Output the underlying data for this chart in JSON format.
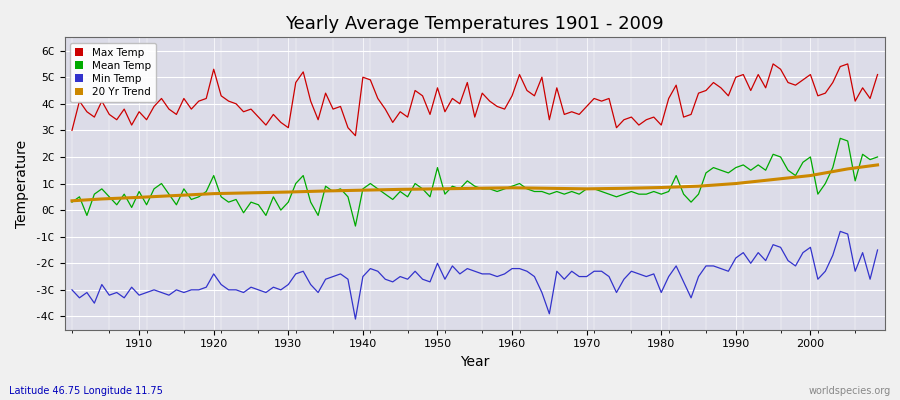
{
  "title": "Yearly Average Temperatures 1901 - 2009",
  "xlabel": "Year",
  "ylabel": "Temperature",
  "footnote_left": "Latitude 46.75 Longitude 11.75",
  "footnote_right": "worldspecies.org",
  "ylim": [
    -4.5,
    6.5
  ],
  "yticks": [
    -4,
    -3,
    -2,
    -1,
    0,
    1,
    2,
    3,
    4,
    5,
    6
  ],
  "ytick_labels": [
    "-4C",
    "-3C",
    "-2C",
    "-1C",
    "0C",
    "1C",
    "2C",
    "3C",
    "4C",
    "5C",
    "6C"
  ],
  "start_year": 1901,
  "end_year": 2009,
  "legend_labels": [
    "Max Temp",
    "Mean Temp",
    "Min Temp",
    "20 Yr Trend"
  ],
  "legend_colors": [
    "#cc0000",
    "#00aa00",
    "#3333cc",
    "#cc8800"
  ],
  "bg_color": "#dcdce8",
  "grid_color": "#ffffff",
  "max_temp": [
    3.0,
    4.1,
    3.7,
    3.5,
    4.1,
    3.6,
    3.4,
    3.8,
    3.2,
    3.7,
    3.4,
    3.9,
    4.2,
    3.8,
    3.6,
    4.2,
    3.8,
    4.1,
    4.2,
    5.3,
    4.3,
    4.1,
    4.0,
    3.7,
    3.8,
    3.5,
    3.2,
    3.6,
    3.3,
    3.1,
    4.8,
    5.2,
    4.1,
    3.4,
    4.4,
    3.8,
    3.9,
    3.1,
    2.8,
    5.0,
    4.9,
    4.2,
    3.8,
    3.3,
    3.7,
    3.5,
    4.5,
    4.3,
    3.6,
    4.6,
    3.7,
    4.2,
    4.0,
    4.8,
    3.5,
    4.4,
    4.1,
    3.9,
    3.8,
    4.3,
    5.1,
    4.5,
    4.3,
    5.0,
    3.4,
    4.6,
    3.6,
    3.7,
    3.6,
    3.9,
    4.2,
    4.1,
    4.2,
    3.1,
    3.4,
    3.5,
    3.2,
    3.4,
    3.5,
    3.2,
    4.2,
    4.7,
    3.5,
    3.6,
    4.4,
    4.5,
    4.8,
    4.6,
    4.3,
    5.0,
    5.1,
    4.5,
    5.1,
    4.6,
    5.5,
    5.3,
    4.8,
    4.7,
    4.9,
    5.1,
    4.3,
    4.4,
    4.8,
    5.4,
    5.5,
    4.1,
    4.6,
    4.2,
    5.1
  ],
  "mean_temp": [
    0.3,
    0.5,
    -0.2,
    0.6,
    0.8,
    0.5,
    0.2,
    0.6,
    0.1,
    0.7,
    0.2,
    0.8,
    1.0,
    0.6,
    0.2,
    0.8,
    0.4,
    0.5,
    0.7,
    1.3,
    0.5,
    0.3,
    0.4,
    -0.1,
    0.3,
    0.2,
    -0.2,
    0.5,
    0.0,
    0.3,
    1.0,
    1.3,
    0.3,
    -0.2,
    0.9,
    0.7,
    0.8,
    0.5,
    -0.6,
    0.8,
    1.0,
    0.8,
    0.6,
    0.4,
    0.7,
    0.5,
    1.0,
    0.8,
    0.5,
    1.6,
    0.6,
    0.9,
    0.8,
    1.1,
    0.9,
    0.8,
    0.8,
    0.7,
    0.8,
    0.9,
    1.0,
    0.8,
    0.7,
    0.7,
    0.6,
    0.7,
    0.6,
    0.7,
    0.6,
    0.8,
    0.8,
    0.7,
    0.6,
    0.5,
    0.6,
    0.7,
    0.6,
    0.6,
    0.7,
    0.6,
    0.7,
    1.3,
    0.6,
    0.3,
    0.6,
    1.4,
    1.6,
    1.5,
    1.4,
    1.6,
    1.7,
    1.5,
    1.7,
    1.5,
    2.1,
    2.0,
    1.5,
    1.3,
    1.8,
    2.0,
    0.6,
    1.0,
    1.6,
    2.7,
    2.6,
    1.1,
    2.1,
    1.9,
    2.0
  ],
  "min_temp": [
    -3.0,
    -3.3,
    -3.1,
    -3.5,
    -2.8,
    -3.2,
    -3.1,
    -3.3,
    -2.9,
    -3.2,
    -3.1,
    -3.0,
    -3.1,
    -3.2,
    -3.0,
    -3.1,
    -3.0,
    -3.0,
    -2.9,
    -2.4,
    -2.8,
    -3.0,
    -3.0,
    -3.1,
    -2.9,
    -3.0,
    -3.1,
    -2.9,
    -3.0,
    -2.8,
    -2.4,
    -2.3,
    -2.8,
    -3.1,
    -2.6,
    -2.5,
    -2.4,
    -2.6,
    -4.1,
    -2.5,
    -2.2,
    -2.3,
    -2.6,
    -2.7,
    -2.5,
    -2.6,
    -2.3,
    -2.6,
    -2.7,
    -2.0,
    -2.6,
    -2.1,
    -2.4,
    -2.2,
    -2.3,
    -2.4,
    -2.4,
    -2.5,
    -2.4,
    -2.2,
    -2.2,
    -2.3,
    -2.5,
    -3.1,
    -3.9,
    -2.3,
    -2.6,
    -2.3,
    -2.5,
    -2.5,
    -2.3,
    -2.3,
    -2.5,
    -3.1,
    -2.6,
    -2.3,
    -2.4,
    -2.5,
    -2.4,
    -3.1,
    -2.5,
    -2.1,
    -2.7,
    -3.3,
    -2.5,
    -2.1,
    -2.1,
    -2.2,
    -2.3,
    -1.8,
    -1.6,
    -2.0,
    -1.6,
    -1.9,
    -1.3,
    -1.4,
    -1.9,
    -2.1,
    -1.6,
    -1.4,
    -2.6,
    -2.3,
    -1.7,
    -0.8,
    -0.9,
    -2.3,
    -1.6,
    -2.6,
    -1.5
  ],
  "trend_x": [
    1901,
    1905,
    1910,
    1915,
    1920,
    1925,
    1930,
    1935,
    1940,
    1945,
    1950,
    1955,
    1960,
    1965,
    1970,
    1975,
    1980,
    1985,
    1990,
    1995,
    2000,
    2005,
    2009
  ],
  "trend_y": [
    0.35,
    0.42,
    0.48,
    0.55,
    0.62,
    0.65,
    0.68,
    0.72,
    0.75,
    0.78,
    0.8,
    0.82,
    0.84,
    0.82,
    0.8,
    0.82,
    0.85,
    0.9,
    1.0,
    1.15,
    1.3,
    1.55,
    1.7
  ]
}
